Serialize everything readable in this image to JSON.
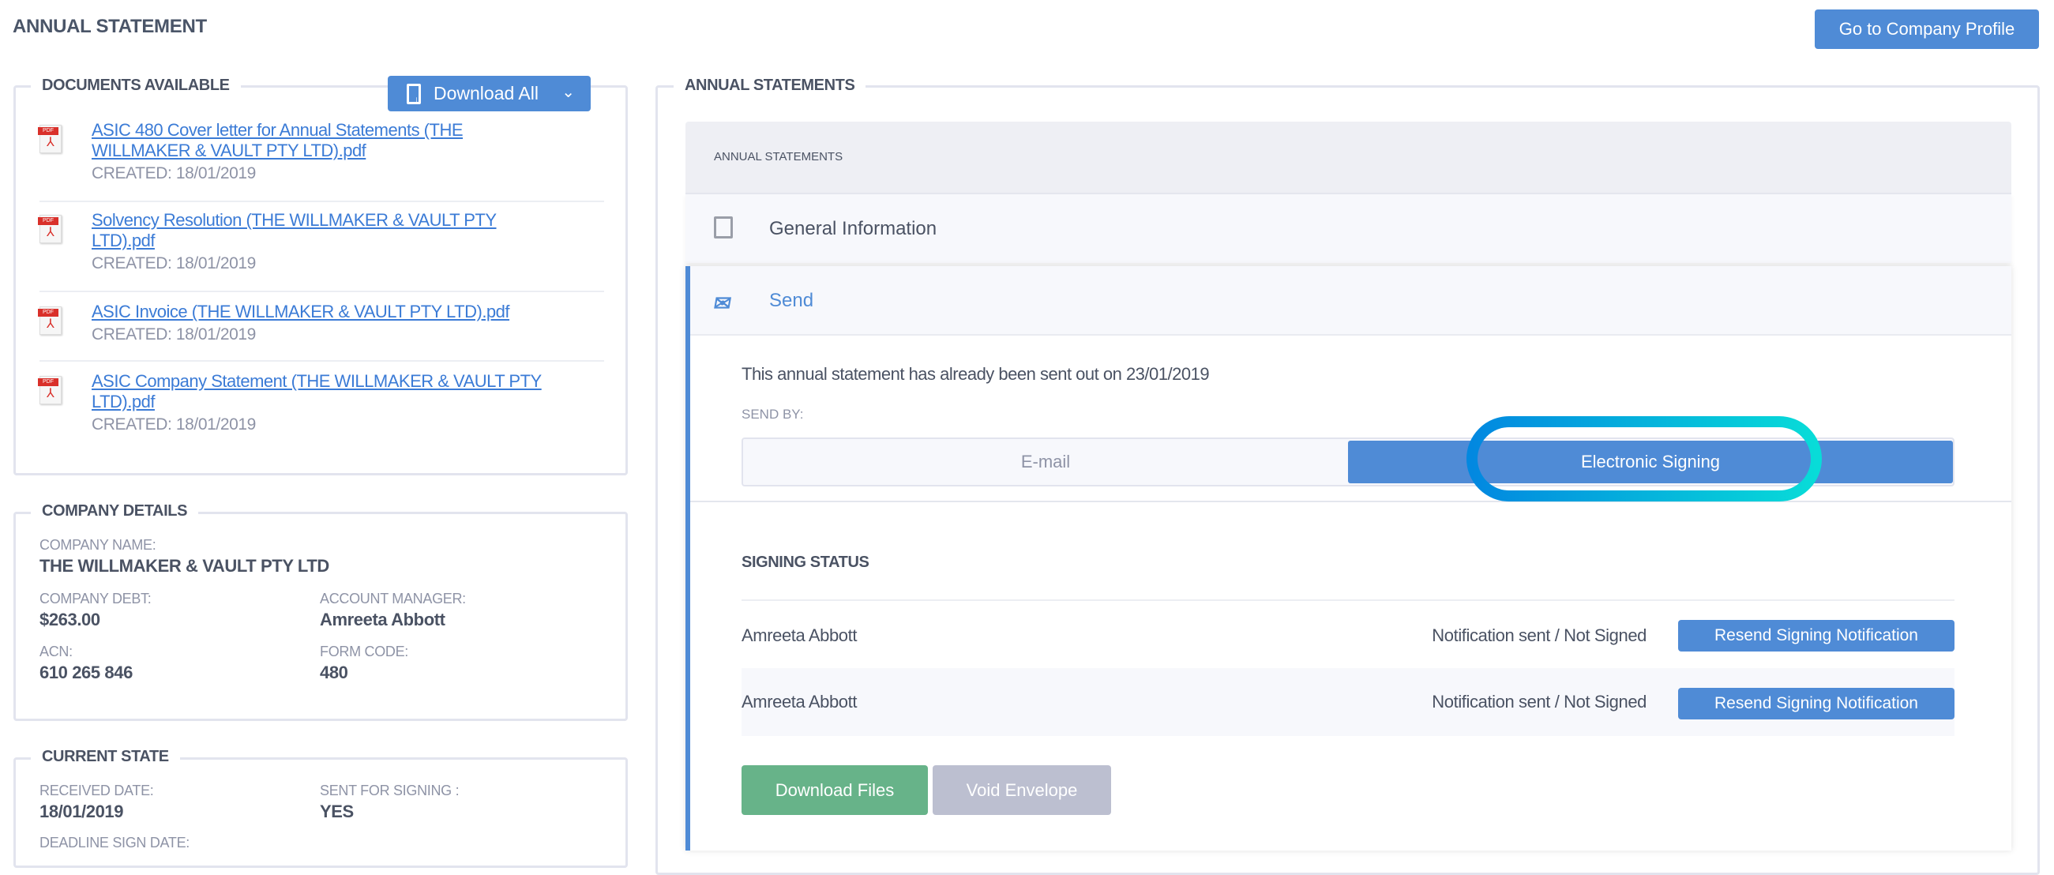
{
  "page": {
    "title": "ANNUAL STATEMENT",
    "go_profile": "Go to Company Profile"
  },
  "documents": {
    "legend": "DOCUMENTS AVAILABLE",
    "download_all": "Download All",
    "items": [
      {
        "name": "ASIC 480 Cover letter for Annual Statements (THE WILLMAKER & VAULT PTY LTD).pdf",
        "created": "CREATED: 18/01/2019",
        "icon": "pdf-icon"
      },
      {
        "name": "Solvency Resolution (THE WILLMAKER & VAULT PTY LTD).pdf",
        "created": "CREATED: 18/01/2019",
        "icon": "pdf-icon"
      },
      {
        "name": "ASIC Invoice (THE WILLMAKER & VAULT PTY LTD).pdf",
        "created": "CREATED: 18/01/2019",
        "icon": "pdf-icon"
      },
      {
        "name": "ASIC Company Statement (THE WILLMAKER & VAULT PTY LTD).pdf",
        "created": "CREATED: 18/01/2019",
        "icon": "pdf-icon"
      }
    ]
  },
  "company": {
    "legend": "COMPANY DETAILS",
    "name_label": "COMPANY NAME:",
    "name": "THE WILLMAKER & VAULT PTY LTD",
    "debt_label": "COMPANY DEBT:",
    "debt": "$263.00",
    "manager_label": "ACCOUNT MANAGER:",
    "manager": "Amreeta Abbott",
    "acn_label": "ACN:",
    "acn": "610 265 846",
    "form_label": "FORM CODE:",
    "form": "480"
  },
  "state": {
    "legend": "CURRENT STATE",
    "received_label": "RECEIVED DATE:",
    "received": "18/01/2019",
    "sent_label": "SENT FOR SIGNING :",
    "sent": "YES",
    "deadline_label": "DEADLINE SIGN DATE:"
  },
  "statements": {
    "legend": "ANNUAL STATEMENTS",
    "header": "ANNUAL STATEMENTS",
    "general": "General Information",
    "send": "Send",
    "sent_message": "This annual statement has already been sent out on 23/01/2019",
    "send_by_label": "SEND BY:",
    "options": [
      "E-mail",
      "Electronic Signing"
    ],
    "selected": "Electronic Signing",
    "signing_status_label": "SIGNING STATUS",
    "signers": [
      {
        "name": "Amreeta Abbott",
        "status": "Notification sent / Not Signed",
        "action": "Resend Signing Notification"
      },
      {
        "name": "Amreeta Abbott",
        "status": "Notification sent / Not Signed",
        "action": "Resend Signing Notification"
      }
    ],
    "download_files": "Download Files",
    "void_envelope": "Void Envelope"
  },
  "colors": {
    "accent": "#4f8bd6",
    "success": "#67b389",
    "disabled": "#bcbfd0",
    "highlight_start": "#0288e0",
    "highlight_end": "#08dcd8"
  }
}
